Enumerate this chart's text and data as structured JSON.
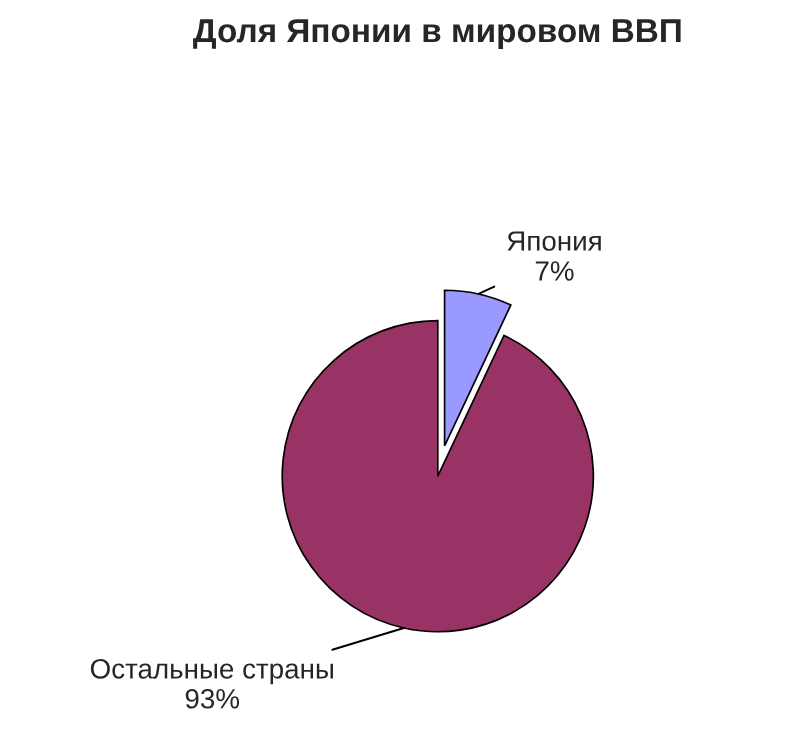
{
  "chart_data": {
    "type": "pie",
    "title": "Доля Японии в мировом ВВП",
    "categories": [
      "Япония",
      "Остальные страны"
    ],
    "values": [
      7,
      93
    ],
    "value_labels": [
      "7%",
      "93%"
    ],
    "colors": [
      "#9999ff",
      "#993366"
    ],
    "legend": false
  }
}
